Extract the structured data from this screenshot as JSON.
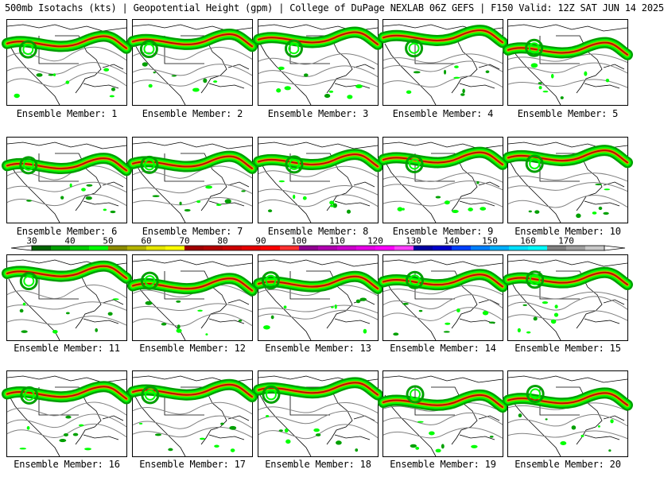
{
  "header": {
    "title": "500mb Isotachs (kts) | Geopotential Height (gpm) | College of DuPage NEXLAB   06Z GEFS | F150 Valid: 12Z SAT JUN 14 2025"
  },
  "panels": [
    {
      "label": "Ensemble Member: 1"
    },
    {
      "label": "Ensemble Member: 2"
    },
    {
      "label": "Ensemble Member: 3"
    },
    {
      "label": "Ensemble Member: 4"
    },
    {
      "label": "Ensemble Member: 5"
    },
    {
      "label": "Ensemble Member: 6"
    },
    {
      "label": "Ensemble Member: 7"
    },
    {
      "label": "Ensemble Member: 8"
    },
    {
      "label": "Ensemble Member: 9"
    },
    {
      "label": "Ensemble Member: 10"
    },
    {
      "label": "Ensemble Member: 11"
    },
    {
      "label": "Ensemble Member: 12"
    },
    {
      "label": "Ensemble Member: 13"
    },
    {
      "label": "Ensemble Member: 14"
    },
    {
      "label": "Ensemble Member: 15"
    },
    {
      "label": "Ensemble Member: 16"
    },
    {
      "label": "Ensemble Member: 17"
    },
    {
      "label": "Ensemble Member: 18"
    },
    {
      "label": "Ensemble Member: 19"
    },
    {
      "label": "Ensemble Member: 20"
    }
  ],
  "legend": {
    "ticks": [
      "30",
      "40",
      "50",
      "60",
      "70",
      "80",
      "90",
      "100",
      "110",
      "120",
      "130",
      "140",
      "150",
      "160",
      "170"
    ],
    "colors": [
      "#006400",
      "#00a000",
      "#00cc00",
      "#00ff00",
      "#8b8b00",
      "#b4b400",
      "#e6e600",
      "#ffff00",
      "#a00000",
      "#b40000",
      "#cc0000",
      "#e60000",
      "#ff0000",
      "#ff3030",
      "#900090",
      "#b000b0",
      "#cc00cc",
      "#e600e6",
      "#ff00ff",
      "#ff40ff",
      "#0000a0",
      "#0000cc",
      "#0040ff",
      "#0080ff",
      "#00b0ff",
      "#00e0ff",
      "#00ffff",
      "#808080",
      "#a0a0a0",
      "#c8c8c8"
    ]
  }
}
